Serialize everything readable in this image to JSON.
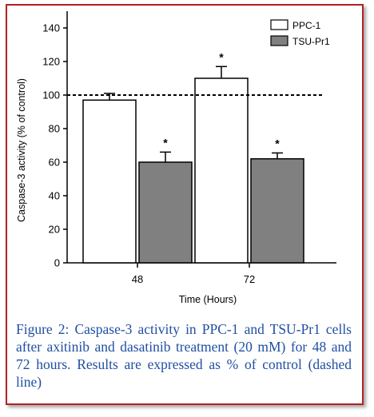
{
  "chart_data": {
    "type": "bar",
    "title": "",
    "xlabel": "Time (Hours)",
    "ylabel": "Caspase-3 activity (% of control)",
    "categories": [
      "48",
      "72"
    ],
    "ylim": [
      0,
      150
    ],
    "yticks": [
      "0",
      "20",
      "40",
      "60",
      "80",
      "100",
      "120",
      "140"
    ],
    "reference_line": 100,
    "series": [
      {
        "name": "PPC-1",
        "values": [
          97,
          110
        ],
        "errors": [
          4,
          7
        ],
        "significance": [
          "",
          "*"
        ],
        "color": "#ffffff"
      },
      {
        "name": "TSU-Pr1",
        "values": [
          60,
          62
        ],
        "errors": [
          6,
          3.5
        ],
        "significance": [
          "*",
          "*"
        ],
        "color": "#808080"
      }
    ],
    "legend_position": "top-right"
  },
  "caption": {
    "text": "Figure 2: Caspase-3 activity in PPC-1 and TSU-Pr1 cells after axitinib and dasatinib treatment (20 mM) for 48 and 72 hours. Results are expressed as % of control (dashed line)"
  },
  "colors": {
    "frame": "#b22222",
    "caption": "#1f4fa3"
  }
}
